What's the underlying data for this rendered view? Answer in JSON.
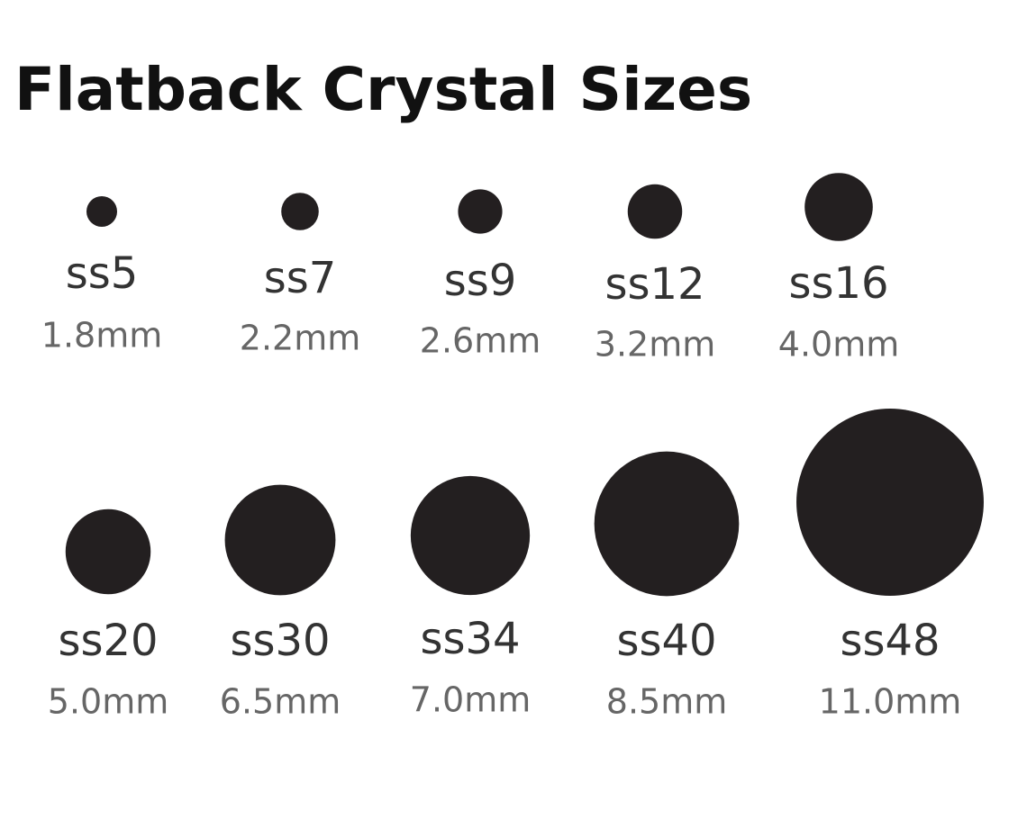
{
  "title": "Flatback Crystal Sizes",
  "rows": [
    [
      {
        "name": "ss5",
        "size": "1.8mm"
      },
      {
        "name": "ss7",
        "size": "2.2mm"
      },
      {
        "name": "ss9",
        "size": "2.6mm"
      },
      {
        "name": "ss12",
        "size": "3.2mm"
      },
      {
        "name": "ss16",
        "size": "4.0mm"
      }
    ],
    [
      {
        "name": "ss20",
        "size": "5.0mm"
      },
      {
        "name": "ss30",
        "size": "6.5mm"
      },
      {
        "name": "ss34",
        "size": "7.0mm"
      },
      {
        "name": "ss40",
        "size": "8.5mm"
      },
      {
        "name": "ss48",
        "size": "11.0mm"
      }
    ]
  ]
}
